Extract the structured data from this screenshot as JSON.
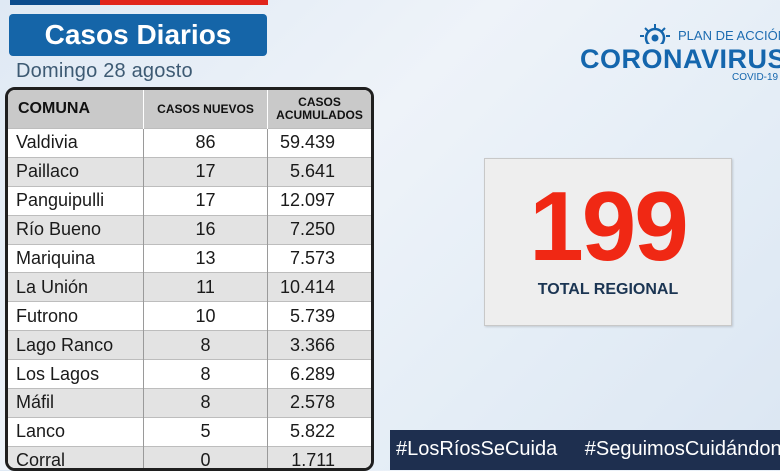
{
  "header": {
    "title": "Casos Diarios",
    "date": "Domingo 28 agosto"
  },
  "brand": {
    "plan": "PLAN DE ACCIÓN",
    "name": "CORONAVIRUS",
    "sub": "COVID-19"
  },
  "table": {
    "headers": {
      "comuna": "COMUNA",
      "casos_nuevos": "CASOS NUEVOS",
      "casos_acumulados_line1": "CASOS",
      "casos_acumulados_line2": "ACUMULADOS"
    },
    "rows": [
      {
        "comuna": "Valdivia",
        "nuevos": "86",
        "acumulados": "59.439"
      },
      {
        "comuna": "Paillaco",
        "nuevos": "17",
        "acumulados": "5.641"
      },
      {
        "comuna": "Panguipulli",
        "nuevos": "17",
        "acumulados": "12.097"
      },
      {
        "comuna": "Río Bueno",
        "nuevos": "16",
        "acumulados": "7.250"
      },
      {
        "comuna": "Mariquina",
        "nuevos": "13",
        "acumulados": "7.573"
      },
      {
        "comuna": "La Unión",
        "nuevos": "11",
        "acumulados": "10.414"
      },
      {
        "comuna": "Futrono",
        "nuevos": "10",
        "acumulados": "5.739"
      },
      {
        "comuna": "Lago Ranco",
        "nuevos": "8",
        "acumulados": "3.366"
      },
      {
        "comuna": "Los Lagos",
        "nuevos": "8",
        "acumulados": "6.289"
      },
      {
        "comuna": "Máfil",
        "nuevos": "8",
        "acumulados": "2.578"
      },
      {
        "comuna": "Lanco",
        "nuevos": "5",
        "acumulados": "5.822"
      },
      {
        "comuna": "Corral",
        "nuevos": "0",
        "acumulados": "1.711"
      }
    ]
  },
  "total": {
    "value": "199",
    "label": "TOTAL REGIONAL"
  },
  "footer": {
    "hashtag1": "#LosRíosSeCuida",
    "hashtag2": "#SeguimosCuidándonos"
  },
  "colors": {
    "title_bg": "#1565a8",
    "total_red": "#f02814",
    "footer_bg": "#1e2f4f",
    "brand_blue": "#1466ad"
  }
}
